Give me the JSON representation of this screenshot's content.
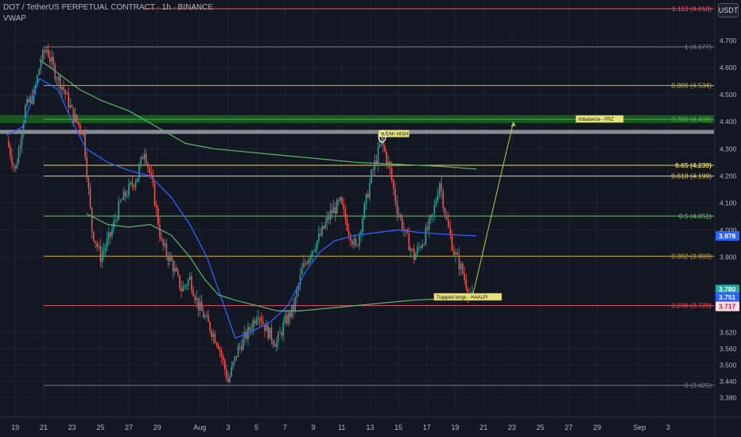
{
  "header": {
    "title": "DOT / TetherUS PERPETUAL CONTRACT · 1h · BINANCE",
    "indicator": "VWAP",
    "currency": "USDT"
  },
  "colors": {
    "background": "#131722",
    "grid": "#1f2330",
    "up": "#26a69a",
    "down": "#ef5350",
    "vwap_blue": "#2962ff",
    "ma_green": "#5bb56e",
    "fib_yellow": "#c8b545",
    "fib_red": "#e45064",
    "fib_gray": "#787b86",
    "fib_green": "#4caf50"
  },
  "chart_data": {
    "type": "candlestick",
    "y_axis": {
      "min": 3.34,
      "max": 4.82,
      "ticks": [
        "4.700",
        "4.600",
        "4.500",
        "4.400",
        "4.300",
        "4.200",
        "4.100",
        "4.000",
        "3.900",
        "3.620",
        "3.560",
        "3.500",
        "3.440",
        "3.380"
      ],
      "tick_values": [
        4.7,
        4.6,
        4.5,
        4.4,
        4.3,
        4.2,
        4.1,
        4.0,
        3.9,
        3.62,
        3.56,
        3.5,
        3.44,
        3.38
      ]
    },
    "x_axis": {
      "ticks": [
        "19",
        "21",
        "23",
        "25",
        "27",
        "29",
        "Aug",
        "3",
        "5",
        "7",
        "9",
        "11",
        "13",
        "15",
        "17",
        "19",
        "21",
        "23",
        "25",
        "27",
        "29",
        "Sep",
        "3"
      ],
      "tick_days": [
        -12,
        -10,
        -8,
        -6,
        -4,
        -2,
        1,
        3,
        5,
        7,
        9,
        11,
        13,
        15,
        17,
        19,
        21,
        23,
        25,
        27,
        29,
        32,
        34
      ]
    },
    "fib_levels": [
      {
        "label": "1.113 (4.818)",
        "value": 4.818,
        "color": "#e45064",
        "bold": false
      },
      {
        "label": "1 (4.677)",
        "value": 4.677,
        "color": "#787b86",
        "bold": false
      },
      {
        "label": "0.886 (4.534)",
        "value": 4.534,
        "color": "#c8b545",
        "bold": false
      },
      {
        "label": "0.786 (4.409)",
        "value": 4.409,
        "color": "#4caf50",
        "bold": false
      },
      {
        "label": "0.65 (4.239)",
        "value": 4.239,
        "color": "#e8d44d",
        "bold": true
      },
      {
        "label": "0.618 (4.199)",
        "value": 4.199,
        "color": "#e8d44d",
        "bold": false
      },
      {
        "label": "0.5 (4.051)",
        "value": 4.051,
        "color": "#6ec16e",
        "bold": false
      },
      {
        "label": "0.382 (3.903)",
        "value": 3.903,
        "color": "#c8a545",
        "bold": false
      },
      {
        "label": "0.236 (3.720)",
        "value": 3.72,
        "color": "#e45064",
        "bold": false
      },
      {
        "label": "0 (3.425)",
        "value": 3.425,
        "color": "#787b86",
        "bold": false
      }
    ],
    "price_badges": [
      {
        "label": "3.978",
        "value": 3.978,
        "color": "#2962ff"
      },
      {
        "label": "3.780",
        "sub": "46:46",
        "value": 3.78,
        "color": "#26a69a"
      },
      {
        "label": "3.751",
        "value": 3.751,
        "color": "#2962ff"
      },
      {
        "label": "3.717",
        "value": 3.717,
        "color": "#ffe0e0",
        "text_color": "#c2185b"
      }
    ],
    "annotations": [
      {
        "text": "Imbalance - FRZ",
        "day": 27.5,
        "value": 4.409
      },
      {
        "text": "WEAK HIGH",
        "day": 13.6,
        "value": 4.355
      },
      {
        "text": "Trapped longs - HAALP!",
        "day": 17.5,
        "value": 3.751
      }
    ],
    "zones": [
      {
        "name": "imbalance-zone",
        "from": 4.395,
        "to": 4.425,
        "color": "#1b5e20"
      },
      {
        "name": "gray-zone",
        "from": 4.355,
        "to": 4.37,
        "color": "#9598a1"
      }
    ],
    "arrow": {
      "from_day": 20.2,
      "from_value": 3.75,
      "to_day": 23.1,
      "to_value": 4.4
    },
    "price_path": [
      [
        -12.6,
        4.33
      ],
      [
        -12.0,
        4.22
      ],
      [
        -11.3,
        4.45
      ],
      [
        -10.7,
        4.5
      ],
      [
        -10.2,
        4.63
      ],
      [
        -9.8,
        4.67
      ],
      [
        -9.2,
        4.58
      ],
      [
        -8.6,
        4.52
      ],
      [
        -7.9,
        4.42
      ],
      [
        -7.2,
        4.36
      ],
      [
        -6.6,
        4.0
      ],
      [
        -6.0,
        3.9
      ],
      [
        -5.3,
        3.98
      ],
      [
        -4.6,
        4.1
      ],
      [
        -4.0,
        4.15
      ],
      [
        -3.4,
        4.2
      ],
      [
        -2.9,
        4.3
      ],
      [
        -2.3,
        4.15
      ],
      [
        -1.7,
        3.95
      ],
      [
        -1.0,
        3.88
      ],
      [
        -0.3,
        3.78
      ],
      [
        0.3,
        3.82
      ],
      [
        0.9,
        3.72
      ],
      [
        1.6,
        3.65
      ],
      [
        2.3,
        3.58
      ],
      [
        3.0,
        3.44
      ],
      [
        3.7,
        3.56
      ],
      [
        4.4,
        3.62
      ],
      [
        5.1,
        3.7
      ],
      [
        5.7,
        3.63
      ],
      [
        6.4,
        3.58
      ],
      [
        7.0,
        3.66
      ],
      [
        7.6,
        3.71
      ],
      [
        8.2,
        3.85
      ],
      [
        8.8,
        3.92
      ],
      [
        9.5,
        3.98
      ],
      [
        10.2,
        4.06
      ],
      [
        10.9,
        4.1
      ],
      [
        11.5,
        4.0
      ],
      [
        12.0,
        3.93
      ],
      [
        12.6,
        4.08
      ],
      [
        13.1,
        4.2
      ],
      [
        13.8,
        4.33
      ],
      [
        14.4,
        4.22
      ],
      [
        14.9,
        4.08
      ],
      [
        15.5,
        3.98
      ],
      [
        16.1,
        3.9
      ],
      [
        16.8,
        3.97
      ],
      [
        17.4,
        4.05
      ],
      [
        17.9,
        4.18
      ],
      [
        18.4,
        4.03
      ],
      [
        18.9,
        3.92
      ],
      [
        19.4,
        3.86
      ],
      [
        19.9,
        3.78
      ],
      [
        20.2,
        3.75
      ]
    ],
    "vwap_blue": [
      [
        -12.6,
        4.35
      ],
      [
        -11.5,
        4.38
      ],
      [
        -10.3,
        4.56
      ],
      [
        -9.0,
        4.52
      ],
      [
        -8.0,
        4.4
      ],
      [
        -7.0,
        4.3
      ],
      [
        -5.5,
        4.25
      ],
      [
        -4.0,
        4.22
      ],
      [
        -2.5,
        4.2
      ],
      [
        -1.0,
        4.12
      ],
      [
        0.3,
        4.02
      ],
      [
        1.5,
        3.9
      ],
      [
        2.5,
        3.75
      ],
      [
        3.5,
        3.6
      ],
      [
        4.5,
        3.62
      ],
      [
        6.0,
        3.66
      ],
      [
        7.2,
        3.72
      ],
      [
        8.5,
        3.85
      ],
      [
        9.5,
        3.92
      ],
      [
        10.5,
        3.96
      ],
      [
        12.0,
        3.98
      ],
      [
        13.5,
        3.99
      ],
      [
        15.0,
        4.0
      ],
      [
        16.5,
        3.99
      ],
      [
        18.0,
        3.985
      ],
      [
        19.5,
        3.98
      ],
      [
        20.5,
        3.978
      ]
    ],
    "ma_green": [
      [
        -10.3,
        4.63
      ],
      [
        -9.0,
        4.58
      ],
      [
        -7.5,
        4.52
      ],
      [
        -6.0,
        4.48
      ],
      [
        -4.0,
        4.44
      ],
      [
        -2.0,
        4.38
      ],
      [
        0.0,
        4.32
      ],
      [
        2.0,
        4.3
      ],
      [
        4.0,
        4.29
      ],
      [
        6.0,
        4.28
      ],
      [
        8.0,
        4.27
      ],
      [
        10.0,
        4.26
      ],
      [
        12.0,
        4.25
      ],
      [
        14.0,
        4.245
      ],
      [
        16.0,
        4.24
      ],
      [
        18.0,
        4.235
      ],
      [
        20.5,
        4.225
      ]
    ],
    "vwap_green": [
      [
        -7.0,
        4.06
      ],
      [
        -5.5,
        4.02
      ],
      [
        -4.0,
        4.01
      ],
      [
        -2.5,
        4.02
      ],
      [
        -1.0,
        3.98
      ],
      [
        0.3,
        3.9
      ],
      [
        1.3,
        3.82
      ],
      [
        2.3,
        3.76
      ],
      [
        3.5,
        3.74
      ],
      [
        5.0,
        3.72
      ],
      [
        6.5,
        3.7
      ],
      [
        8.0,
        3.7
      ],
      [
        10.0,
        3.71
      ],
      [
        12.0,
        3.72
      ],
      [
        14.0,
        3.73
      ],
      [
        16.0,
        3.74
      ],
      [
        18.0,
        3.745
      ],
      [
        20.2,
        3.75
      ]
    ]
  }
}
